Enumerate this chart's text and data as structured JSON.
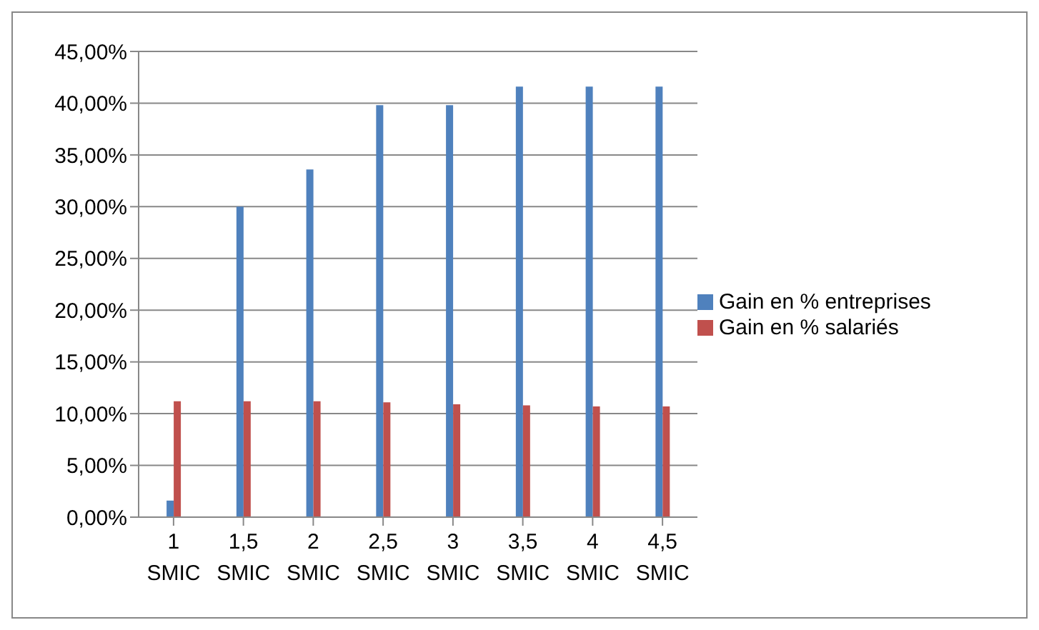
{
  "chart_data": {
    "type": "bar",
    "categories": [
      "1 SMIC",
      "1,5 SMIC",
      "2 SMIC",
      "2,5 SMIC",
      "3 SMIC",
      "3,5 SMIC",
      "4 SMIC",
      "4,5 SMIC"
    ],
    "series": [
      {
        "name": "Gain en % entreprises",
        "color": "#4f81bd",
        "values": [
          1.6,
          30,
          33.6,
          39.8,
          39.8,
          41.6,
          41.6,
          41.6
        ]
      },
      {
        "name": "Gain en % salariés",
        "color": "#c0504d",
        "values": [
          11.2,
          11.2,
          11.2,
          11.1,
          10.9,
          10.8,
          10.7,
          10.7
        ]
      }
    ],
    "ylim": [
      0,
      45
    ],
    "yticks": [
      {
        "value": 0,
        "label": "0,00%"
      },
      {
        "value": 5,
        "label": "5,00%"
      },
      {
        "value": 10,
        "label": "10,00%"
      },
      {
        "value": 15,
        "label": "15,00%"
      },
      {
        "value": 20,
        "label": "20,00%"
      },
      {
        "value": 25,
        "label": "25,00%"
      },
      {
        "value": 30,
        "label": "30,00%"
      },
      {
        "value": 35,
        "label": "35,00%"
      },
      {
        "value": 40,
        "label": "40,00%"
      },
      {
        "value": 45,
        "label": "45,00%"
      }
    ],
    "grid": "y",
    "legend": "right"
  }
}
